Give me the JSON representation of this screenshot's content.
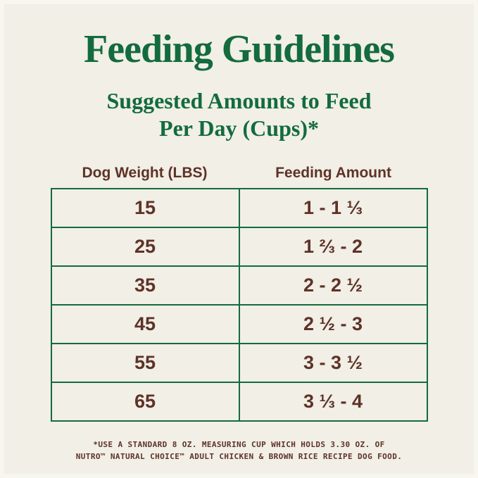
{
  "colors": {
    "green": "#136b3e",
    "brown": "#5e3228",
    "background": "#f1efe6"
  },
  "title": "Feeding Guidelines",
  "subtitle_line1": "Suggested Amounts to Feed",
  "subtitle_line2": "Per Day (Cups)*",
  "footnote_line1": "*USE A STANDARD 8 OZ. MEASURING CUP WHICH HOLDS 3.30 OZ. OF",
  "footnote_line2": "NUTRO™ NATURAL CHOICE™ ADULT CHICKEN & BROWN RICE RECIPE DOG FOOD.",
  "chart_data": {
    "type": "table",
    "title": "Feeding Guidelines",
    "subtitle": "Suggested Amounts to Feed Per Day (Cups)*",
    "columns": [
      "Dog Weight (LBS)",
      "Feeding Amount"
    ],
    "rows": [
      [
        "15",
        "1 - 1 ⅓"
      ],
      [
        "25",
        "1 ⅔ - 2"
      ],
      [
        "35",
        "2 - 2 ½"
      ],
      [
        "45",
        "2 ½ - 3"
      ],
      [
        "55",
        "3 - 3 ½"
      ],
      [
        "65",
        "3 ⅓ - 4"
      ]
    ],
    "footnote": "*USE A STANDARD 8 OZ. MEASURING CUP WHICH HOLDS 3.30 OZ. OF NUTRO™ NATURAL CHOICE™ ADULT CHICKEN & BROWN RICE RECIPE DOG FOOD."
  }
}
